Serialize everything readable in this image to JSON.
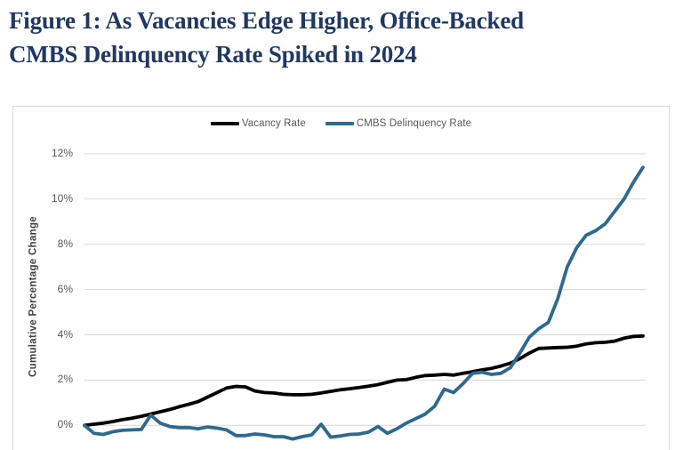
{
  "title": {
    "line1": "Figure 1: As Vacancies Edge Higher, Office-Backed",
    "line2": "CMBS Delinquency Rate Spiked in 2024",
    "color": "#1f3864"
  },
  "chart_data": {
    "type": "line",
    "title": "Figure 1: As Vacancies Edge Higher, Office-Backed CMBS Delinquency Rate Spiked in 2024",
    "xlabel": "",
    "ylabel": "Cumulative Percentage Change",
    "y_ticks_visible": [
      "0%",
      "2%",
      "4%",
      "6%",
      "8%",
      "10%",
      "12%"
    ],
    "ylim_visible": [
      -1.1,
      12.8
    ],
    "grid": true,
    "grid_color": "#d9d9d9",
    "legend_position": "top-center",
    "x_axis_note": "x tick labels are cropped out of the visible image; series span ~60 evenly spaced periods ending in 2024",
    "x": [
      0,
      1,
      2,
      3,
      4,
      5,
      6,
      7,
      8,
      9,
      10,
      11,
      12,
      13,
      14,
      15,
      16,
      17,
      18,
      19,
      20,
      21,
      22,
      23,
      24,
      25,
      26,
      27,
      28,
      29,
      30,
      31,
      32,
      33,
      34,
      35,
      36,
      37,
      38,
      39,
      40,
      41,
      42,
      43,
      44,
      45,
      46,
      47,
      48,
      49,
      50,
      51,
      52,
      53,
      54,
      55,
      56,
      57,
      58,
      59
    ],
    "series": [
      {
        "name": "Vacancy Rate",
        "color": "#000000",
        "unit": "% cumulative change",
        "values": [
          0.0,
          0.05,
          0.1,
          0.17,
          0.25,
          0.32,
          0.4,
          0.5,
          0.6,
          0.7,
          0.82,
          0.93,
          1.05,
          1.25,
          1.45,
          1.65,
          1.72,
          1.7,
          1.52,
          1.45,
          1.43,
          1.37,
          1.35,
          1.35,
          1.37,
          1.43,
          1.5,
          1.57,
          1.62,
          1.67,
          1.73,
          1.8,
          1.9,
          2.0,
          2.02,
          2.12,
          2.2,
          2.22,
          2.25,
          2.22,
          2.3,
          2.37,
          2.45,
          2.52,
          2.62,
          2.75,
          2.95,
          3.2,
          3.4,
          3.42,
          3.44,
          3.45,
          3.5,
          3.6,
          3.65,
          3.67,
          3.72,
          3.85,
          3.93,
          3.95
        ]
      },
      {
        "name": "CMBS Delinquency Rate",
        "color": "#2e6990",
        "unit": "% cumulative change",
        "values": [
          0.0,
          -0.35,
          -0.4,
          -0.28,
          -0.22,
          -0.2,
          -0.18,
          0.45,
          0.1,
          -0.05,
          -0.1,
          -0.1,
          -0.15,
          -0.07,
          -0.12,
          -0.2,
          -0.45,
          -0.45,
          -0.38,
          -0.42,
          -0.5,
          -0.5,
          -0.6,
          -0.5,
          -0.42,
          0.05,
          -0.52,
          -0.47,
          -0.4,
          -0.38,
          -0.3,
          -0.05,
          -0.35,
          -0.15,
          0.1,
          0.3,
          0.5,
          0.85,
          1.6,
          1.45,
          1.85,
          2.3,
          2.35,
          2.25,
          2.3,
          2.55,
          3.2,
          3.9,
          4.27,
          4.55,
          5.6,
          7.0,
          7.85,
          8.4,
          8.6,
          8.9,
          9.45,
          10.0,
          10.75,
          11.4
        ]
      }
    ]
  }
}
